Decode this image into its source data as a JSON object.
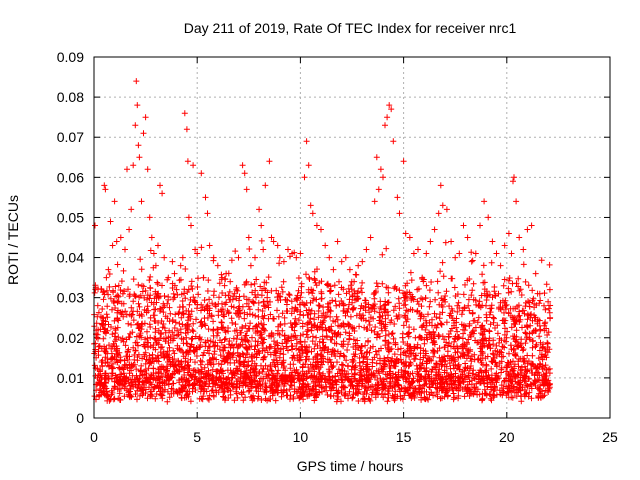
{
  "chart_data": {
    "type": "scatter",
    "title": "Day 211 of 2019, Rate Of TEC Index for receiver nrc1",
    "xlabel": "GPS time / hours",
    "ylabel": "ROTI / TECUs",
    "xlim": [
      0,
      25
    ],
    "ylim": [
      0,
      0.09
    ],
    "x_ticks": [
      "0",
      "5",
      "10",
      "15",
      "20",
      "25"
    ],
    "y_ticks": [
      "0",
      "0.01",
      "0.02",
      "0.03",
      "0.04",
      "0.05",
      "0.06",
      "0.07",
      "0.08",
      "0.09"
    ],
    "grid": true,
    "legend": "none",
    "marker": "+",
    "colors": {
      "series": "#ff0000",
      "grid": "#b0b0b0",
      "axis": "#000000"
    },
    "series": [
      {
        "points": [
          [
            0.05,
            0.048
          ],
          [
            0.1,
            0.015
          ],
          [
            0.2,
            0.022
          ],
          [
            0.3,
            0.012
          ],
          [
            0.4,
            0.025
          ],
          [
            0.5,
            0.058
          ],
          [
            0.55,
            0.057
          ],
          [
            0.6,
            0.035
          ],
          [
            0.7,
            0.037
          ],
          [
            0.8,
            0.049
          ],
          [
            0.9,
            0.043
          ],
          [
            1.0,
            0.054
          ],
          [
            1.1,
            0.044
          ],
          [
            1.2,
            0.033
          ],
          [
            1.3,
            0.045
          ],
          [
            1.4,
            0.031
          ],
          [
            1.5,
            0.042
          ],
          [
            1.6,
            0.062
          ],
          [
            1.7,
            0.047
          ],
          [
            1.8,
            0.052
          ],
          [
            1.9,
            0.063
          ],
          [
            2.0,
            0.073
          ],
          [
            2.05,
            0.084
          ],
          [
            2.1,
            0.078
          ],
          [
            2.15,
            0.068
          ],
          [
            2.2,
            0.065
          ],
          [
            2.3,
            0.054
          ],
          [
            2.4,
            0.071
          ],
          [
            2.5,
            0.075
          ],
          [
            2.6,
            0.062
          ],
          [
            2.7,
            0.05
          ],
          [
            2.8,
            0.045
          ],
          [
            2.9,
            0.041
          ],
          [
            3.0,
            0.038
          ],
          [
            3.1,
            0.043
          ],
          [
            3.2,
            0.058
          ],
          [
            3.3,
            0.056
          ],
          [
            3.4,
            0.04
          ],
          [
            3.6,
            0.035
          ],
          [
            3.8,
            0.039
          ],
          [
            3.9,
            0.036
          ],
          [
            4.0,
            0.032
          ],
          [
            4.2,
            0.038
          ],
          [
            4.3,
            0.04
          ],
          [
            4.4,
            0.076
          ],
          [
            4.5,
            0.072
          ],
          [
            4.55,
            0.064
          ],
          [
            4.6,
            0.05
          ],
          [
            4.7,
            0.048
          ],
          [
            4.8,
            0.063
          ],
          [
            4.9,
            0.042
          ],
          [
            5.0,
            0.041
          ],
          [
            5.2,
            0.061
          ],
          [
            5.4,
            0.055
          ],
          [
            5.5,
            0.051
          ],
          [
            5.6,
            0.043
          ],
          [
            5.8,
            0.04
          ],
          [
            6.0,
            0.038
          ],
          [
            6.2,
            0.035
          ],
          [
            6.4,
            0.036
          ],
          [
            6.6,
            0.034
          ],
          [
            6.8,
            0.031
          ],
          [
            7.0,
            0.04
          ],
          [
            7.2,
            0.063
          ],
          [
            7.3,
            0.061
          ],
          [
            7.4,
            0.057
          ],
          [
            7.5,
            0.045
          ],
          [
            7.6,
            0.038
          ],
          [
            7.8,
            0.04
          ],
          [
            8.0,
            0.052
          ],
          [
            8.1,
            0.048
          ],
          [
            8.2,
            0.042
          ],
          [
            8.3,
            0.058
          ],
          [
            8.5,
            0.064
          ],
          [
            8.6,
            0.045
          ],
          [
            8.7,
            0.044
          ],
          [
            8.9,
            0.043
          ],
          [
            9.0,
            0.04
          ],
          [
            9.2,
            0.039
          ],
          [
            9.4,
            0.042
          ],
          [
            9.6,
            0.041
          ],
          [
            9.8,
            0.04
          ],
          [
            10.0,
            0.041
          ],
          [
            10.2,
            0.06
          ],
          [
            10.3,
            0.069
          ],
          [
            10.4,
            0.063
          ],
          [
            10.5,
            0.053
          ],
          [
            10.6,
            0.051
          ],
          [
            10.8,
            0.048
          ],
          [
            11.0,
            0.047
          ],
          [
            11.2,
            0.043
          ],
          [
            11.4,
            0.04
          ],
          [
            11.6,
            0.037
          ],
          [
            11.8,
            0.044
          ],
          [
            12.0,
            0.039
          ],
          [
            12.2,
            0.04
          ],
          [
            12.4,
            0.037
          ],
          [
            12.6,
            0.034
          ],
          [
            12.8,
            0.038
          ],
          [
            13.0,
            0.039
          ],
          [
            13.2,
            0.042
          ],
          [
            13.4,
            0.045
          ],
          [
            13.6,
            0.054
          ],
          [
            13.7,
            0.065
          ],
          [
            13.8,
            0.057
          ],
          [
            13.9,
            0.062
          ],
          [
            14.0,
            0.06
          ],
          [
            14.1,
            0.073
          ],
          [
            14.2,
            0.075
          ],
          [
            14.3,
            0.078
          ],
          [
            14.4,
            0.077
          ],
          [
            14.5,
            0.069
          ],
          [
            14.7,
            0.055
          ],
          [
            14.8,
            0.051
          ],
          [
            15.0,
            0.064
          ],
          [
            15.1,
            0.046
          ],
          [
            15.3,
            0.045
          ],
          [
            15.5,
            0.041
          ],
          [
            15.7,
            0.042
          ],
          [
            15.9,
            0.035
          ],
          [
            16.1,
            0.041
          ],
          [
            16.3,
            0.044
          ],
          [
            16.5,
            0.047
          ],
          [
            16.7,
            0.051
          ],
          [
            16.8,
            0.058
          ],
          [
            16.9,
            0.053
          ],
          [
            17.1,
            0.052
          ],
          [
            17.3,
            0.044
          ],
          [
            17.5,
            0.04
          ],
          [
            17.7,
            0.041
          ],
          [
            17.9,
            0.048
          ],
          [
            18.1,
            0.045
          ],
          [
            18.3,
            0.039
          ],
          [
            18.5,
            0.041
          ],
          [
            18.7,
            0.048
          ],
          [
            18.9,
            0.054
          ],
          [
            19.1,
            0.05
          ],
          [
            19.3,
            0.044
          ],
          [
            19.5,
            0.041
          ],
          [
            19.7,
            0.038
          ],
          [
            19.9,
            0.043
          ],
          [
            20.1,
            0.046
          ],
          [
            20.3,
            0.059
          ],
          [
            20.35,
            0.06
          ],
          [
            20.45,
            0.054
          ],
          [
            20.6,
            0.045
          ],
          [
            20.8,
            0.042
          ],
          [
            21.0,
            0.047
          ],
          [
            21.2,
            0.048
          ],
          [
            21.4,
            0.036
          ],
          [
            21.6,
            0.031
          ],
          [
            21.8,
            0.028
          ],
          [
            22.0,
            0.029
          ],
          [
            22.1,
            0.025
          ]
        ]
      }
    ]
  }
}
